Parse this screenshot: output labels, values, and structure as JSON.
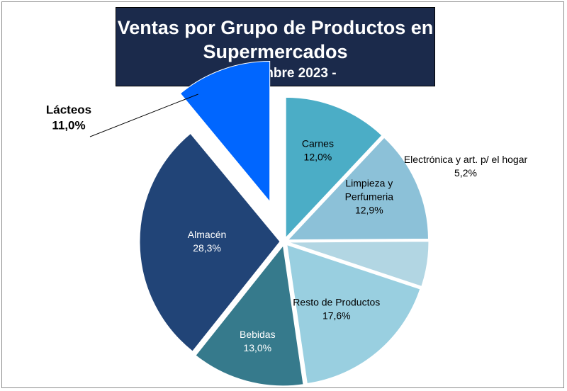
{
  "chart_data": {
    "type": "pie",
    "title": "Ventas por Grupo de Productos en Supermercados",
    "title_lines": [
      "Ventas por Grupo de Productos en",
      "Supermercados"
    ],
    "subtitle": "- septiembre 2023 -",
    "slices": [
      {
        "name": "Carnes",
        "value": 12.0,
        "label": "12,0%",
        "color": "#4badc6"
      },
      {
        "name": "Limpieza y Perfumeria",
        "name_lines": [
          "Limpieza y",
          "Perfumeria"
        ],
        "value": 12.9,
        "label": "12,9%",
        "color": "#8cc1d8"
      },
      {
        "name": "Electrónica y art. p/ el hogar",
        "value": 5.2,
        "label": "5,2%",
        "color": "#b2d6e3"
      },
      {
        "name": "Resto de Productos",
        "value": 17.6,
        "label": "17,6%",
        "color": "#99cfe0"
      },
      {
        "name": "Bebidas",
        "value": 13.0,
        "label": "13,0%",
        "color": "#367a8c"
      },
      {
        "name": "Almacén",
        "value": 28.3,
        "label": "28,3%",
        "color": "#214477"
      },
      {
        "name": "Lácteos",
        "value": 11.0,
        "label": "11,0%",
        "color": "#0066ff",
        "exploded": true
      }
    ],
    "start_angle_deg": 0,
    "direction": "clockwise",
    "legend": "none"
  }
}
